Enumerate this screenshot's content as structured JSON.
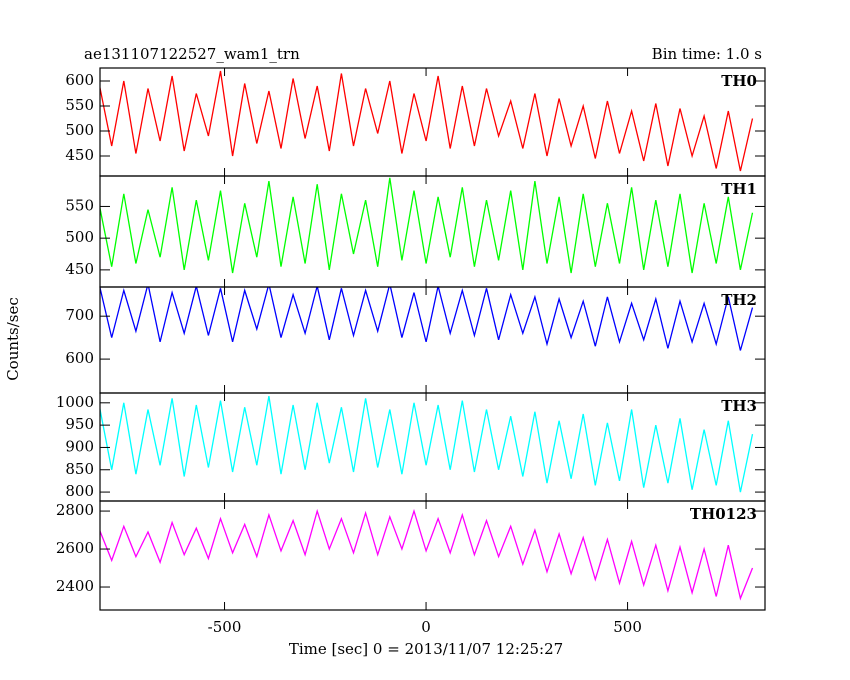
{
  "chart_data": {
    "type": "line",
    "title": "ae131107122527_wam1_trn",
    "subtitle": "Bin time: 1.0 s",
    "xlabel": "Time [sec] 0 = 2013/11/07 12:25:27",
    "ylabel": "Counts/sec",
    "xlim": [
      -809,
      841
    ],
    "xticks": [
      -500,
      0,
      500
    ],
    "x": [
      -810,
      -780,
      -750,
      -720,
      -690,
      -660,
      -630,
      -600,
      -570,
      -540,
      -510,
      -480,
      -450,
      -420,
      -390,
      -360,
      -330,
      -300,
      -270,
      -240,
      -210,
      -180,
      -150,
      -120,
      -90,
      -60,
      -30,
      0,
      30,
      60,
      90,
      120,
      150,
      180,
      210,
      240,
      270,
      300,
      330,
      360,
      390,
      420,
      450,
      480,
      510,
      540,
      570,
      600,
      630,
      660,
      690,
      720,
      750,
      780,
      810
    ],
    "series": [
      {
        "name": "TH0",
        "color": "#ff0000",
        "ylim": [
          410,
          626
        ],
        "yticks": [
          450,
          500,
          550,
          600
        ],
        "values": [
          590,
          470,
          600,
          455,
          585,
          480,
          610,
          460,
          575,
          490,
          620,
          450,
          595,
          475,
          580,
          465,
          605,
          485,
          590,
          460,
          615,
          470,
          585,
          495,
          600,
          455,
          575,
          480,
          610,
          465,
          590,
          470,
          585,
          490,
          560,
          465,
          575,
          450,
          565,
          470,
          550,
          445,
          560,
          455,
          540,
          440,
          555,
          430,
          545,
          450,
          530,
          425,
          540,
          420,
          525
        ]
      },
      {
        "name": "TH1",
        "color": "#00ff00",
        "ylim": [
          423,
          598
        ],
        "yticks": [
          450,
          500,
          550
        ],
        "values": [
          550,
          455,
          570,
          460,
          545,
          470,
          580,
          450,
          560,
          465,
          575,
          445,
          555,
          470,
          590,
          455,
          565,
          460,
          585,
          450,
          570,
          475,
          560,
          455,
          595,
          465,
          575,
          460,
          565,
          470,
          580,
          455,
          560,
          465,
          575,
          450,
          590,
          460,
          565,
          445,
          570,
          455,
          555,
          460,
          580,
          450,
          560,
          455,
          570,
          445,
          555,
          460,
          565,
          450,
          540
        ]
      },
      {
        "name": "TH2",
        "color": "#0000ff",
        "ylim": [
          521,
          768
        ],
        "yticks": [
          600,
          700
        ],
        "values": [
          770,
          650,
          760,
          665,
          775,
          640,
          755,
          660,
          770,
          655,
          765,
          640,
          760,
          670,
          775,
          650,
          750,
          660,
          770,
          645,
          765,
          655,
          760,
          665,
          775,
          650,
          755,
          640,
          770,
          660,
          760,
          655,
          765,
          645,
          750,
          660,
          745,
          635,
          740,
          650,
          735,
          630,
          745,
          640,
          730,
          645,
          740,
          625,
          735,
          640,
          730,
          635,
          745,
          620,
          720
        ]
      },
      {
        "name": "TH3",
        "color": "#00ffff",
        "ylim": [
          780,
          1022
        ],
        "yticks": [
          800,
          850,
          900,
          950,
          1000
        ],
        "values": [
          990,
          850,
          1000,
          840,
          985,
          860,
          1010,
          835,
          995,
          855,
          1005,
          845,
          990,
          860,
          1015,
          840,
          995,
          850,
          1000,
          865,
          990,
          845,
          1010,
          855,
          985,
          840,
          1000,
          860,
          995,
          850,
          1005,
          845,
          985,
          850,
          970,
          835,
          980,
          820,
          960,
          830,
          975,
          815,
          955,
          825,
          985,
          810,
          950,
          820,
          965,
          805,
          940,
          815,
          960,
          800,
          930
        ]
      },
      {
        "name": "TH0123",
        "color": "#ff00ff",
        "ylim": [
          2279,
          2853
        ],
        "yticks": [
          2400,
          2600,
          2800
        ],
        "values": [
          2700,
          2540,
          2720,
          2560,
          2690,
          2530,
          2740,
          2570,
          2710,
          2550,
          2760,
          2580,
          2730,
          2560,
          2780,
          2590,
          2750,
          2570,
          2800,
          2600,
          2760,
          2580,
          2790,
          2570,
          2770,
          2600,
          2800,
          2590,
          2760,
          2580,
          2780,
          2570,
          2750,
          2560,
          2720,
          2520,
          2700,
          2480,
          2680,
          2470,
          2660,
          2440,
          2650,
          2420,
          2640,
          2410,
          2620,
          2380,
          2610,
          2370,
          2600,
          2350,
          2620,
          2340,
          2500
        ]
      }
    ]
  }
}
